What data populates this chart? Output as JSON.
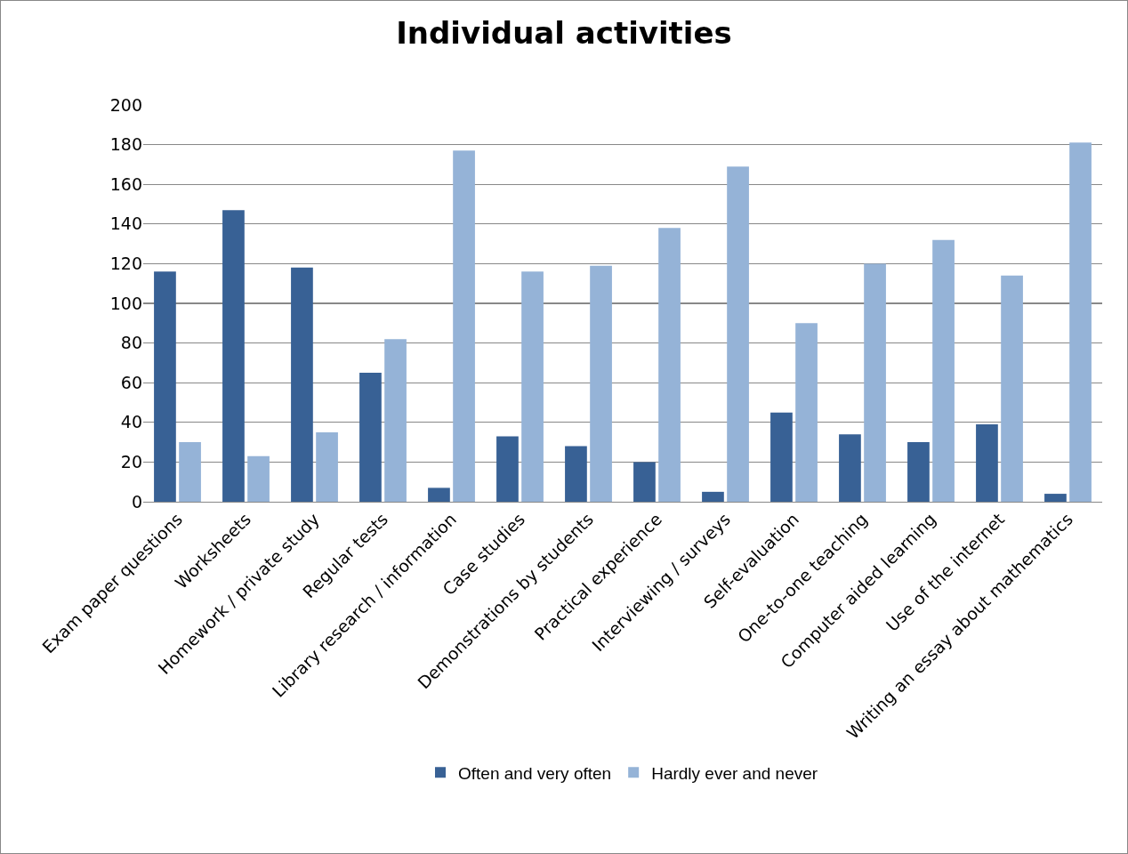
{
  "chart_data": {
    "type": "bar",
    "title": "Individual activities",
    "categories": [
      "Exam paper questions",
      "Worksheets",
      "Homework / private study",
      "Regular tests",
      "Library research / information",
      "Case studies",
      "Demonstrations by students",
      "Practical experience",
      "Interviewing / surveys",
      "Self-evaluation",
      "One-to-one teaching",
      "Computer aided learning",
      "Use of the internet",
      "Writing an essay about mathematics"
    ],
    "series": [
      {
        "name": "Often and very often",
        "color": "#386195",
        "values": [
          116,
          147,
          118,
          65,
          7,
          33,
          28,
          20,
          5,
          45,
          34,
          30,
          39,
          4
        ]
      },
      {
        "name": "Hardly ever and never",
        "color": "#95b3d7",
        "values": [
          30,
          23,
          35,
          82,
          177,
          116,
          119,
          138,
          169,
          90,
          120,
          132,
          114,
          181
        ]
      }
    ],
    "ylim": [
      0,
      200
    ],
    "yticks": [
      0,
      20,
      40,
      60,
      80,
      100,
      120,
      140,
      160,
      180,
      200
    ],
    "grid": "y",
    "legend": "bottom"
  }
}
